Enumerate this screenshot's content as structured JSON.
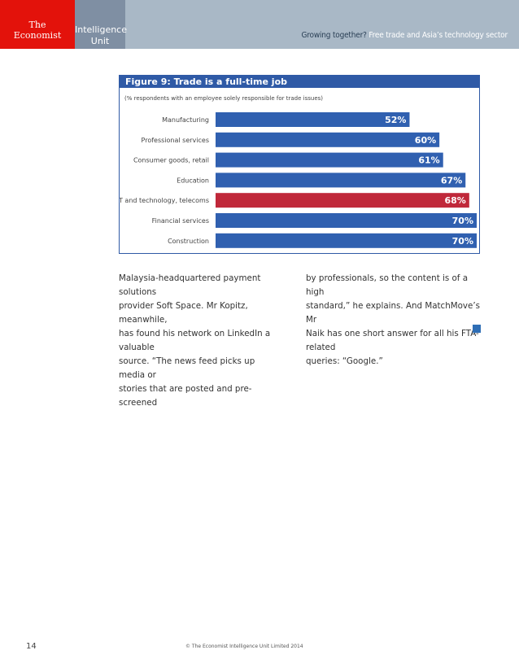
{
  "header": {
    "logo_line1": "The",
    "logo_line2": "Economist",
    "eiu_line1": "Intelligence",
    "eiu_line2": "Unit",
    "title_part1": "Growing together?",
    "title_part2": "Free trade and Asia’s technology sector"
  },
  "figure": {
    "title": "Figure 9: Trade is a full-time job",
    "subtitle": "(% respondents with an employee solely responsible for trade issues)"
  },
  "chart_data": {
    "type": "bar",
    "orientation": "horizontal",
    "title": "Figure 9: Trade is a full-time job",
    "subtitle": "(% respondents with an employee solely responsible for trade issues)",
    "categories": [
      "Manufacturing",
      "Professional services",
      "Consumer goods, retail",
      "Education",
      "IT and technology, telecoms",
      "Financial services",
      "Construction"
    ],
    "values": [
      52,
      60,
      61,
      67,
      68,
      70,
      70
    ],
    "value_labels": [
      "52%",
      "60%",
      "61%",
      "67%",
      "68%",
      "70%",
      "70%"
    ],
    "unit": "%",
    "bar_colors": [
      "#3060b0",
      "#3060b0",
      "#3060b0",
      "#3060b0",
      "#c0283a",
      "#3060b0",
      "#3060b0"
    ],
    "highlight_index": 4,
    "xlim": [
      0,
      70
    ],
    "grid": false,
    "legend": "none"
  },
  "body": {
    "left": [
      "Malaysia-headquartered payment solutions",
      "provider Soft Space. Mr Kopitz, meanwhile,",
      "has found his network on LinkedIn a valuable",
      "source. “The news feed picks up media or",
      "stories that are posted and pre-screened"
    ],
    "right": [
      "by professionals, so the content is of a high",
      "standard,” he explains. And MatchMove’s Mr",
      "Naik has one short answer for all his FTA-related",
      "queries: “Google.”"
    ]
  },
  "footer": {
    "page_number": "14",
    "copyright": "© The Economist Intelligence Unit Limited 2014"
  },
  "colors": {
    "header_bg": "#a9b8c6",
    "economist_red": "#e3120b",
    "eiu_grey": "#7f8fa3",
    "figure_blue": "#2f5aa6",
    "highlight_red": "#c0283a"
  }
}
